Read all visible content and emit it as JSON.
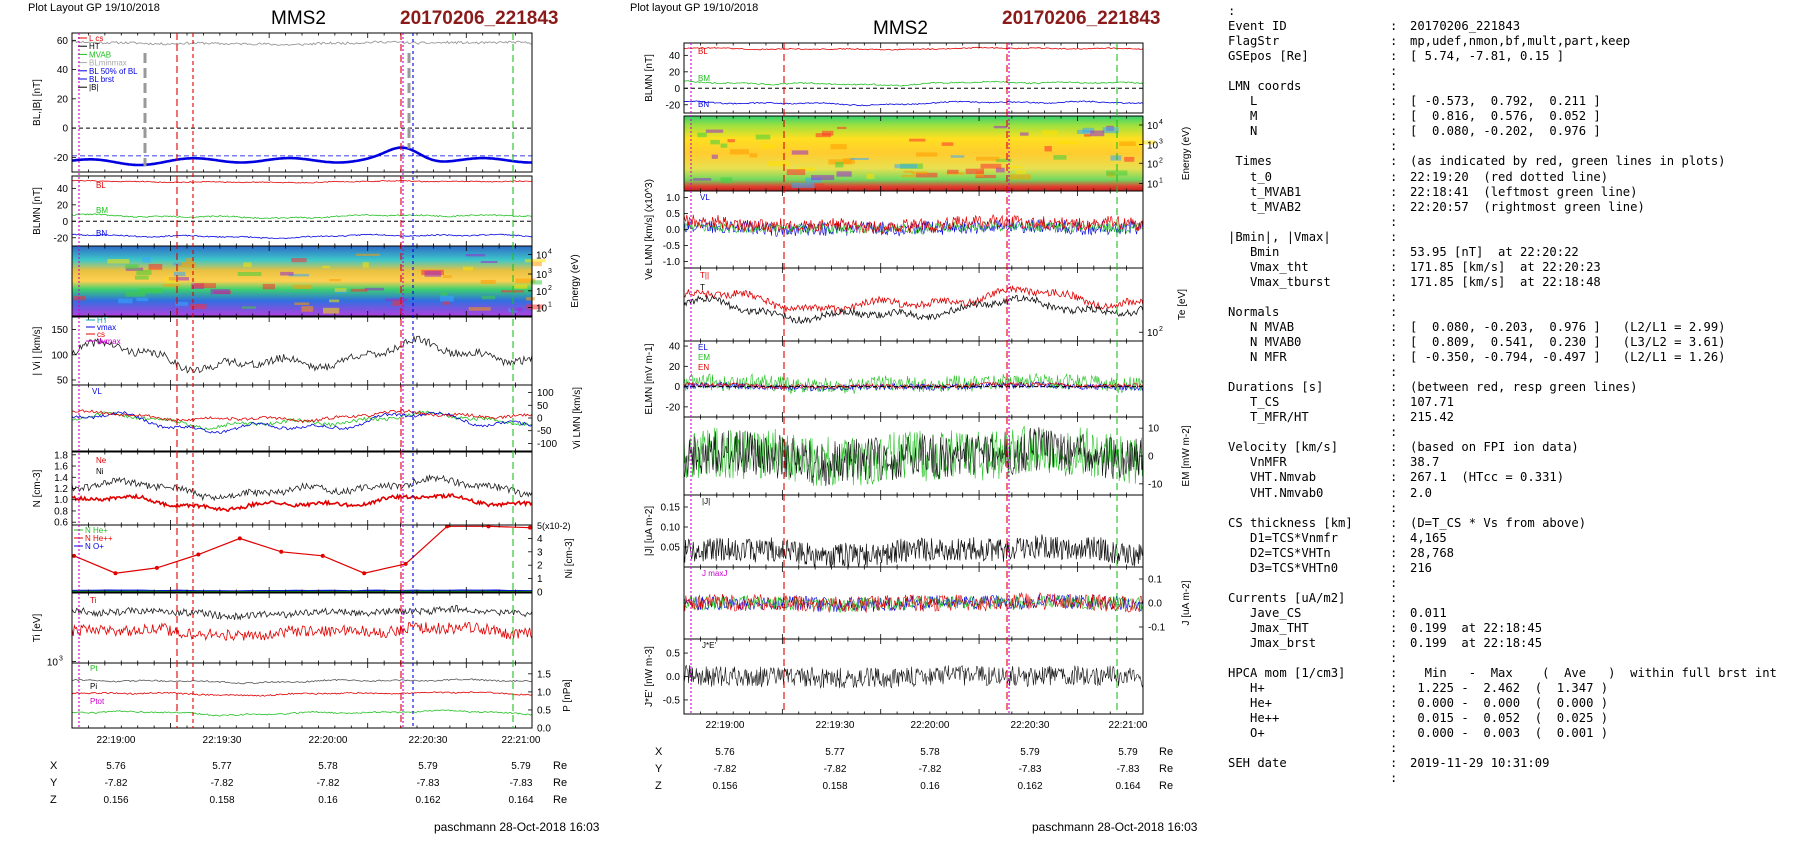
{
  "left_panel": {
    "header": "Plot Layout GP 19/10/2018",
    "spacecraft": "MMS2",
    "event": "20170206_221843",
    "footer": "paschmann 28-Oct-2018 16:03",
    "x_ticks": [
      "22:19:00",
      "22:19:30",
      "22:20:00",
      "22:20:30",
      "22:21:00"
    ],
    "position_table": {
      "row_labels": [
        "X",
        "Y",
        "Z"
      ],
      "unit": "Re",
      "values": [
        [
          "5.76",
          "5.77",
          "5.78",
          "5.79",
          "5.79"
        ],
        [
          "-7.82",
          "-7.82",
          "-7.82",
          "-7.83",
          "-7.83"
        ],
        [
          "0.156",
          "0.158",
          "0.16",
          "0.162",
          "0.164"
        ]
      ]
    },
    "panels": {
      "b": {
        "ylabel": "BL,|B| [nT]",
        "yticks": [
          "60",
          "40",
          "20",
          "0",
          "-20"
        ],
        "legend": [
          "L cs",
          "HT",
          "MVAB",
          "BLminmax",
          "BL 50% of BL",
          "BL brst",
          "|B|"
        ]
      },
      "blmn": {
        "ylabel": "BLMN [nT]",
        "yticks": [
          "40",
          "20",
          "0",
          "-20"
        ],
        "labels": [
          "BL",
          "BM",
          "BN"
        ]
      },
      "spec": {
        "ylabel": "Energy (eV)",
        "yticks": [
          "10^4",
          "10^3",
          "10^2",
          "10^1"
        ]
      },
      "vi": {
        "ylabel": "| Vi | [km/s]",
        "yticks": [
          "150",
          "100",
          "50"
        ],
        "legend": [
          "HT",
          "vmax",
          "cs",
          "dvmax"
        ]
      },
      "vlmn": {
        "ylabel": "Vi LMN [km/s]",
        "yticks": [
          "100",
          "50",
          "0",
          "-50",
          "-100"
        ],
        "labels": [
          "VL"
        ]
      },
      "n": {
        "ylabel": "N [cm-3]",
        "yticks": [
          "1.8",
          "1.6",
          "1.4",
          "1.2",
          "1.0",
          "0.8",
          "0.6"
        ],
        "legend": [
          "Ne",
          "Ni"
        ]
      },
      "ni": {
        "ylabel": "Ni [cm-3]",
        "scale": "5(x10-2)",
        "yticks": [
          "4",
          "3",
          "2",
          "1",
          "0"
        ],
        "legend": [
          "N He+",
          "N He++",
          "N O+"
        ]
      },
      "ti": {
        "ylabel": "Ti [eV]",
        "yticks": [
          "10^3"
        ],
        "labels": [
          "Ti"
        ]
      },
      "p": {
        "ylabel": "P [nPa]",
        "yticks": [
          "1.5",
          "1.0",
          "0.5",
          "0.0"
        ],
        "labels": [
          "Pt",
          "Pi",
          "Ptot"
        ]
      }
    }
  },
  "middle_panel": {
    "header": "Plot layout GP 19/10/2018",
    "spacecraft": "MMS2",
    "event": "20170206_221843",
    "footer": "paschmann 28-Oct-2018 16:03",
    "x_ticks": [
      "22:19:00",
      "22:19:30",
      "22:20:00",
      "22:20:30",
      "22:21:00"
    ],
    "position_table": {
      "row_labels": [
        "X",
        "Y",
        "Z"
      ],
      "unit": "Re",
      "values": [
        [
          "5.76",
          "5.77",
          "5.78",
          "5.79",
          "5.79"
        ],
        [
          "-7.82",
          "-7.82",
          "-7.82",
          "-7.83",
          "-7.83"
        ],
        [
          "0.156",
          "0.158",
          "0.16",
          "0.162",
          "0.164"
        ]
      ]
    },
    "panels": {
      "blmn": {
        "ylabel": "BLMN [nT]",
        "yticks": [
          "40",
          "20",
          "0",
          "-20"
        ],
        "labels": [
          "BL",
          "BM",
          "BN"
        ]
      },
      "spec": {
        "ylabel": "Energy (eV)",
        "yticks": [
          "10^4",
          "10^3",
          "10^2",
          "10^1"
        ]
      },
      "ve": {
        "ylabel": "Ve LMN [km/s] (x10^3)",
        "yticks": [
          "1.0",
          "0.5",
          "0.0",
          "-0.5",
          "-1.0"
        ],
        "labels": [
          "VL"
        ]
      },
      "te": {
        "ylabel": "Te [eV]",
        "yticks": [
          "10^2"
        ],
        "labels": [
          "T||",
          "T"
        ]
      },
      "elmn": {
        "ylabel": "ELMN [mV m-1]",
        "yticks": [
          "40",
          "20",
          "0",
          "-20"
        ],
        "labels": [
          "EL",
          "EM",
          "EN"
        ]
      },
      "em": {
        "ylabel": "EM [mW m-2]",
        "yticks": [
          "10",
          "0",
          "-10"
        ]
      },
      "j": {
        "ylabel": "|J| [uA m-2]",
        "yticks": [
          "0.15",
          "0.10",
          "0.05"
        ],
        "labels": [
          "|J|"
        ]
      },
      "jlmn": {
        "ylabel": "J [uA m-2]",
        "yticks": [
          "0.1",
          "0.0",
          "-0.1"
        ],
        "labels": [
          "J maxJ"
        ]
      },
      "je": {
        "ylabel": "J*E' [nW m-3]",
        "yticks": [
          "0.5",
          "0.0",
          "-0.5"
        ],
        "labels": [
          "J*E'"
        ]
      }
    }
  },
  "info_rows": [
    {
      "k": ":",
      "v": ""
    },
    {
      "k": "Event ID",
      "v": "20170206_221843"
    },
    {
      "k": "FlagStr",
      "v": "mp,udef,nmon,bf,mult,part,keep"
    },
    {
      "k": "GSEpos [Re]",
      "v": "[ 5.74, -7.81, 0.15 ]"
    },
    {
      "k": "",
      "v": ""
    },
    {
      "k": "LMN coords",
      "v": ""
    },
    {
      "k": "   L",
      "v": "[ -0.573,  0.792,  0.211 ]"
    },
    {
      "k": "   M",
      "v": "[  0.816,  0.576,  0.052 ]"
    },
    {
      "k": "   N",
      "v": "[  0.080, -0.202,  0.976 ]"
    },
    {
      "k": "",
      "v": ""
    },
    {
      "k": " Times",
      "v": "(as indicated by red, green lines in plots)"
    },
    {
      "k": "   t_0",
      "v": "22:19:20  (red dotted line)"
    },
    {
      "k": "   t_MVAB1",
      "v": "22:18:41  (leftmost green line)"
    },
    {
      "k": "   t_MVAB2",
      "v": "22:20:57  (rightmost green line)"
    },
    {
      "k": "",
      "v": ""
    },
    {
      "k": "|Bmin|, |Vmax|",
      "v": ""
    },
    {
      "k": "   Bmin",
      "v": "53.95 [nT]  at 22:20:22"
    },
    {
      "k": "   Vmax_tht",
      "v": "171.85 [km/s]  at 22:20:23"
    },
    {
      "k": "   Vmax_tburst",
      "v": "171.85 [km/s]  at 22:18:48"
    },
    {
      "k": "",
      "v": ""
    },
    {
      "k": "Normals",
      "v": ""
    },
    {
      "k": "   N MVAB",
      "v": "[  0.080, -0.203,  0.976 ]   (L2/L1 = 2.99)"
    },
    {
      "k": "   N MVAB0",
      "v": "[  0.809,  0.541,  0.230 ]   (L3/L2 = 3.61)"
    },
    {
      "k": "   N MFR",
      "v": "[ -0.350, -0.794, -0.497 ]   (L2/L1 = 1.26)"
    },
    {
      "k": "",
      "v": ""
    },
    {
      "k": "Durations [s]",
      "v": "(between red, resp green lines)"
    },
    {
      "k": "   T_CS",
      "v": "107.71"
    },
    {
      "k": "   T_MFR/HT",
      "v": "215.42"
    },
    {
      "k": "",
      "v": ""
    },
    {
      "k": "Velocity [km/s]",
      "v": "(based on FPI ion data)"
    },
    {
      "k": "   VnMFR",
      "v": "38.7"
    },
    {
      "k": "   VHT.Nmvab",
      "v": "267.1  (HTcc = 0.331)"
    },
    {
      "k": "   VHT.Nmvab0",
      "v": "2.0"
    },
    {
      "k": "",
      "v": ""
    },
    {
      "k": "CS thickness [km]",
      "v": "(D=T_CS * Vs from above)"
    },
    {
      "k": "   D1=TCS*Vnmfr",
      "v": "4,165"
    },
    {
      "k": "   D2=TCS*VHTn",
      "v": "28,768"
    },
    {
      "k": "   D3=TCS*VHTn0",
      "v": "216"
    },
    {
      "k": "",
      "v": ""
    },
    {
      "k": "Currents [uA/m2]",
      "v": ""
    },
    {
      "k": "   Jave_CS",
      "v": "0.011"
    },
    {
      "k": "   Jmax_THT",
      "v": "0.199  at 22:18:45"
    },
    {
      "k": "   Jmax_brst",
      "v": "0.199  at 22:18:45"
    },
    {
      "k": "",
      "v": ""
    },
    {
      "k": "HPCA mom [1/cm3]",
      "v": "  Min   -  Max    (  Ave   )  within full brst int"
    },
    {
      "k": "   H+",
      "v": " 1.225 -  2.462  (  1.347 )"
    },
    {
      "k": "   He+",
      "v": " 0.000 -  0.000  (  0.000 )"
    },
    {
      "k": "   He++",
      "v": " 0.015 -  0.052  (  0.025 )"
    },
    {
      "k": "   O+",
      "v": " 0.000 -  0.003  (  0.001 )"
    },
    {
      "k": "",
      "v": ""
    },
    {
      "k": "SEH date",
      "v": "2019-11-29 10:31:09"
    },
    {
      "k": "",
      "v": ""
    }
  ],
  "chart_data": [
    {
      "type": "line",
      "title": "MMS2 20170206_221843",
      "x_range": [
        "22:18:48",
        "22:21:07"
      ],
      "xlabel": "",
      "panels": [
        {
          "name": "BL,|B|",
          "ylabel": "BL,|B| [nT]",
          "ylim": [
            -30,
            65
          ],
          "series": [
            {
              "name": "|B|",
              "approx": 58
            },
            {
              "name": "BL brst",
              "min": -26,
              "max": -12
            }
          ]
        },
        {
          "name": "BLMN",
          "ylabel": "BLMN [nT]",
          "ylim": [
            -30,
            55
          ],
          "series": [
            {
              "name": "BL",
              "approx": 48
            },
            {
              "name": "BM",
              "approx": 5
            },
            {
              "name": "BN",
              "approx": -18
            }
          ]
        },
        {
          "name": "ion spectrogram",
          "ylabel": "Energy (eV)",
          "type": "heatmap"
        },
        {
          "name": "|Vi|",
          "ylabel": "| Vi | [km/s]",
          "ylim": [
            40,
            175
          ]
        },
        {
          "name": "Vi LMN",
          "ylabel": "Vi LMN [km/s]",
          "ylim": [
            -130,
            130
          ]
        },
        {
          "name": "N",
          "ylabel": "N [cm-3]",
          "ylim": [
            0.6,
            1.8
          ],
          "series": [
            {
              "name": "Ne",
              "approx": 0.95
            },
            {
              "name": "Ni",
              "approx": 1.15
            }
          ]
        },
        {
          "name": "Ni HPCA",
          "ylabel": "Ni [cm-3]",
          "ylim": [
            0,
            5
          ],
          "series": [
            {
              "name": "N He++",
              "x": [
                0,
                1,
                2,
                3,
                4,
                5,
                6,
                7,
                8,
                9,
                10,
                11
              ],
              "values": [
                2.7,
                1.4,
                1.8,
                2.8,
                4.0,
                3.0,
                2.7,
                1.4,
                2.1,
                4.9,
                4.9,
                4.8
              ]
            },
            {
              "name": "N O+",
              "approx": 0.1
            }
          ]
        },
        {
          "name": "Ti",
          "ylabel": "Ti [eV]"
        },
        {
          "name": "P",
          "ylabel": "P [nPa]",
          "ylim": [
            0,
            1.8
          ],
          "series": [
            {
              "name": "Pt",
              "approx": 1.3
            },
            {
              "name": "Ptot",
              "approx": 0.45
            }
          ]
        }
      ]
    },
    {
      "type": "line",
      "title": "MMS2 20170206_221843",
      "x_range": [
        "22:18:48",
        "22:21:07"
      ],
      "panels": [
        {
          "name": "BLMN",
          "ylabel": "BLMN [nT]",
          "ylim": [
            -30,
            55
          ]
        },
        {
          "name": "electron spectrogram",
          "ylabel": "Energy (eV)",
          "type": "heatmap"
        },
        {
          "name": "Ve LMN",
          "ylabel": "Ve LMN [km/s] (x10^3)",
          "ylim": [
            -1.1,
            1.1
          ]
        },
        {
          "name": "Te",
          "ylabel": "Te [eV]"
        },
        {
          "name": "ELMN",
          "ylabel": "ELMN [mV m-1]",
          "ylim": [
            -30,
            45
          ]
        },
        {
          "name": "EM",
          "ylabel": "EM [mW m-2]",
          "ylim": [
            -14,
            14
          ]
        },
        {
          "name": "|J|",
          "ylabel": "|J| [uA m-2]",
          "ylim": [
            0,
            0.18
          ]
        },
        {
          "name": "J LMN",
          "ylabel": "J [uA m-2]",
          "ylim": [
            -0.15,
            0.15
          ]
        },
        {
          "name": "J*E'",
          "ylabel": "J*E' [nW m-3]",
          "ylim": [
            -0.8,
            0.8
          ]
        }
      ]
    }
  ],
  "colors": {
    "event_title": "#8b1a1a",
    "red": "#e00000",
    "green": "#22c022",
    "blue": "#0000e0",
    "black": "#000000",
    "magenta": "#cc00cc",
    "grey": "#999999"
  }
}
